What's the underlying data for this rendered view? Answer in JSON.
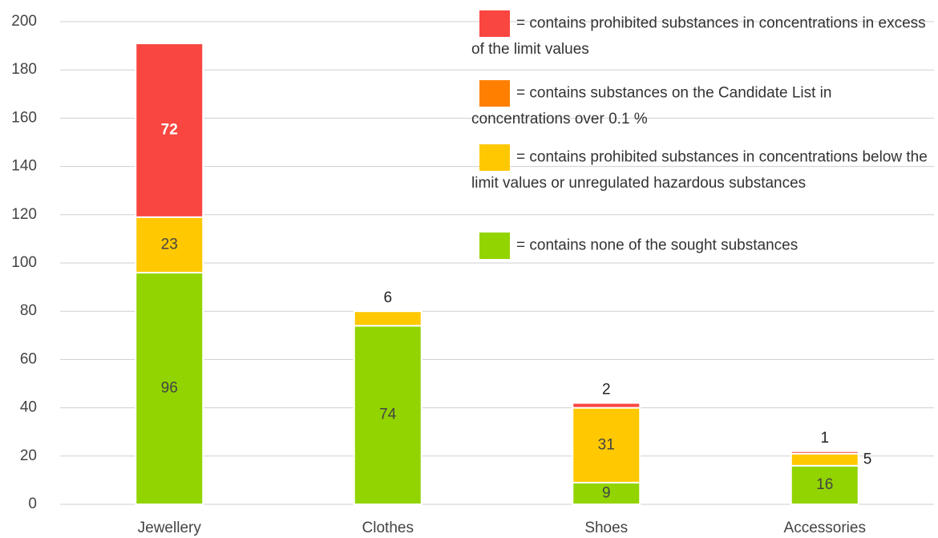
{
  "chart_data": {
    "type": "stacked-bar",
    "categories": [
      "Jewellery",
      "Clothes",
      "Shoes",
      "Accessories"
    ],
    "series": [
      {
        "name": "= contains none of the sought substances",
        "color": "#92d400",
        "values": [
          96,
          74,
          9,
          16
        ]
      },
      {
        "name": "= contains prohibited substances in concentrations below the limit values or unregulated hazardous substances",
        "color": "#ffc800",
        "values": [
          23,
          6,
          31,
          5
        ]
      },
      {
        "name": "= contains substances on the Candidate List in concentrations over 0.1 %",
        "color": "#ff8000",
        "values": [
          null,
          null,
          null,
          null
        ]
      },
      {
        "name": "= contains prohibited substances in concentrations in excess of the limit values",
        "color": "#f94640",
        "values": [
          72,
          null,
          2,
          1
        ]
      }
    ],
    "ylim": [
      0,
      200
    ],
    "yticks": [
      0,
      20,
      40,
      60,
      80,
      100,
      120,
      140,
      160,
      180,
      200
    ],
    "grid": true
  }
}
